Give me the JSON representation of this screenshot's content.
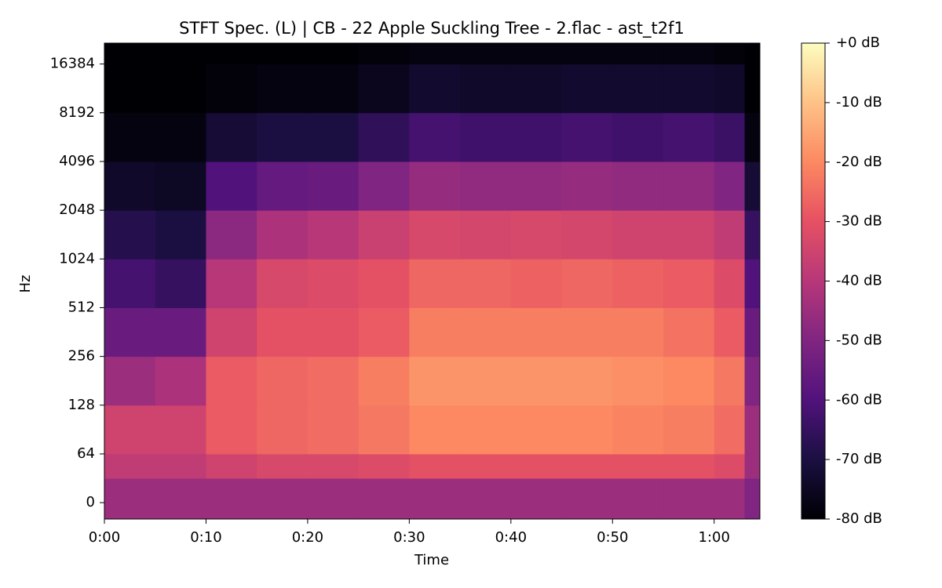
{
  "chart_data": {
    "type": "heatmap",
    "title": "STFT Spec. (L) | CB - 22 Apple Suckling Tree - 2.flac - ast_t2f1",
    "x_label": "Time",
    "y_label": "Hz",
    "xlim": [
      0,
      64.5
    ],
    "xticks": [
      {
        "value": 0,
        "label": "0:00"
      },
      {
        "value": 10,
        "label": "0:10"
      },
      {
        "value": 20,
        "label": "0:20"
      },
      {
        "value": 30,
        "label": "0:30"
      },
      {
        "value": 40,
        "label": "0:40"
      },
      {
        "value": 50,
        "label": "0:50"
      },
      {
        "value": 60,
        "label": "1:00"
      }
    ],
    "ylim": [
      -21.5,
      22050
    ],
    "y_scale": "symlog",
    "linthresh": 64,
    "yticks": [
      0,
      64,
      128,
      256,
      512,
      1024,
      2048,
      4096,
      8192,
      16384
    ],
    "colormap": "magma",
    "clim": [
      -80,
      0
    ],
    "cticks": [
      {
        "value": 0,
        "label": "+0 dB"
      },
      {
        "value": -10,
        "label": "-10 dB"
      },
      {
        "value": -20,
        "label": "-20 dB"
      },
      {
        "value": -30,
        "label": "-30 dB"
      },
      {
        "value": -40,
        "label": "-40 dB"
      },
      {
        "value": -50,
        "label": "-50 dB"
      },
      {
        "value": -60,
        "label": "-60 dB"
      },
      {
        "value": -70,
        "label": "-70 dB"
      },
      {
        "value": -80,
        "label": "-80 dB"
      }
    ],
    "x_bins": [
      0,
      5,
      10,
      15,
      20,
      25,
      30,
      35,
      40,
      45,
      50,
      55,
      60,
      63,
      64.5
    ],
    "y_bins": [
      -21.5,
      32,
      64,
      128,
      256,
      512,
      1024,
      2048,
      4096,
      8192,
      16384,
      22050
    ],
    "z": [
      [
        -45,
        -45,
        -45,
        -45,
        -45,
        -45,
        -45,
        -45,
        -45,
        -45,
        -45,
        -45,
        -45,
        -50
      ],
      [
        -38,
        -38,
        -35,
        -33,
        -33,
        -32,
        -30,
        -30,
        -30,
        -30,
        -30,
        -30,
        -32,
        -45
      ],
      [
        -35,
        -35,
        -28,
        -26,
        -25,
        -23,
        -20,
        -20,
        -20,
        -20,
        -21,
        -22,
        -25,
        -45
      ],
      [
        -45,
        -42,
        -28,
        -26,
        -25,
        -22,
        -18,
        -18,
        -18,
        -18,
        -19,
        -20,
        -23,
        -50
      ],
      [
        -55,
        -55,
        -35,
        -30,
        -30,
        -28,
        -22,
        -22,
        -22,
        -22,
        -22,
        -24,
        -28,
        -55
      ],
      [
        -62,
        -65,
        -40,
        -33,
        -32,
        -30,
        -26,
        -26,
        -27,
        -26,
        -27,
        -28,
        -32,
        -60
      ],
      [
        -68,
        -70,
        -48,
        -42,
        -40,
        -36,
        -33,
        -34,
        -33,
        -34,
        -35,
        -35,
        -38,
        -65
      ],
      [
        -74,
        -75,
        -60,
        -56,
        -55,
        -50,
        -46,
        -47,
        -47,
        -46,
        -47,
        -47,
        -50,
        -72
      ],
      [
        -78,
        -78,
        -72,
        -70,
        -70,
        -66,
        -62,
        -63,
        -63,
        -62,
        -63,
        -62,
        -64,
        -78
      ],
      [
        -80,
        -80,
        -79,
        -78,
        -78,
        -76,
        -73,
        -74,
        -74,
        -73,
        -73,
        -73,
        -74,
        -80
      ],
      [
        -80,
        -80,
        -80,
        -80,
        -80,
        -79,
        -78,
        -78,
        -78,
        -78,
        -78,
        -78,
        -79,
        -80
      ]
    ]
  }
}
